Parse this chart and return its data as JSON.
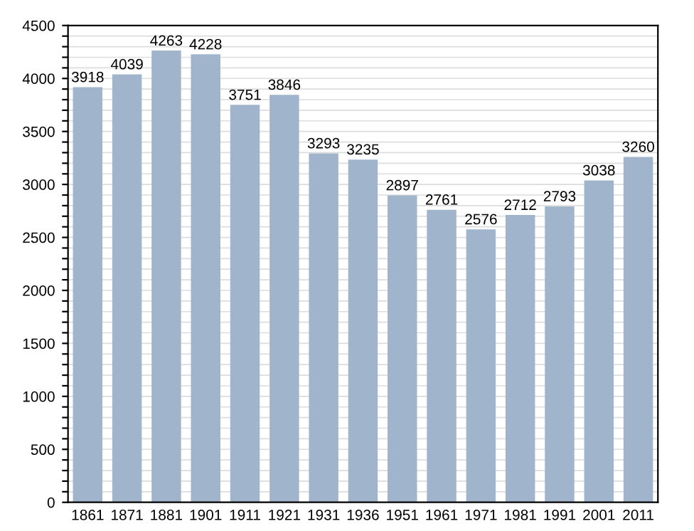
{
  "chart_data": {
    "type": "bar",
    "categories": [
      "1861",
      "1871",
      "1881",
      "1901",
      "1911",
      "1921",
      "1931",
      "1936",
      "1951",
      "1961",
      "1971",
      "1981",
      "1991",
      "2001",
      "2011"
    ],
    "values": [
      3918,
      4039,
      4263,
      4228,
      3751,
      3846,
      3293,
      3235,
      2897,
      2761,
      2576,
      2712,
      2793,
      3038,
      3260
    ],
    "color": "#a0b4cc",
    "data_labels": true,
    "ylim": [
      0,
      4500
    ],
    "yticks": [
      0,
      {
        "value": 100,
        "label": null
      },
      {
        "value": 200,
        "label": null
      },
      {
        "value": 300,
        "label": null
      },
      {
        "value": 400,
        "label": null
      },
      500,
      {
        "value": 600,
        "label": null
      },
      {
        "value": 700,
        "label": null
      },
      {
        "value": 800,
        "label": null
      },
      {
        "value": 900,
        "label": null
      },
      1000,
      {
        "value": 1100,
        "label": null
      },
      {
        "value": 1200,
        "label": null
      },
      {
        "value": 1300,
        "label": null
      },
      {
        "value": 1400,
        "label": null
      },
      1500,
      {
        "value": 1600,
        "label": null
      },
      {
        "value": 1700,
        "label": null
      },
      {
        "value": 1800,
        "label": null
      },
      {
        "value": 1900,
        "label": null
      },
      2000,
      {
        "value": 2100,
        "label": null
      },
      {
        "value": 2200,
        "label": null
      },
      {
        "value": 2300,
        "label": null
      },
      {
        "value": 2400,
        "label": null
      },
      2500,
      {
        "value": 2600,
        "label": null
      },
      {
        "value": 2700,
        "label": null
      },
      {
        "value": 2800,
        "label": null
      },
      {
        "value": 2900,
        "label": null
      },
      3000,
      {
        "value": 3100,
        "label": null
      },
      {
        "value": 3200,
        "label": null
      },
      {
        "value": 3300,
        "label": null
      },
      {
        "value": 3400,
        "label": null
      },
      3500,
      {
        "value": 3600,
        "label": null
      },
      {
        "value": 3700,
        "label": null
      },
      {
        "value": 3800,
        "label": null
      },
      {
        "value": 3900,
        "label": null
      },
      4000,
      {
        "value": 4100,
        "label": null
      },
      {
        "value": 4200,
        "label": null
      },
      {
        "value": 4300,
        "label": null
      },
      {
        "value": 4400,
        "label": null
      },
      4500
    ],
    "grid": "y"
  }
}
